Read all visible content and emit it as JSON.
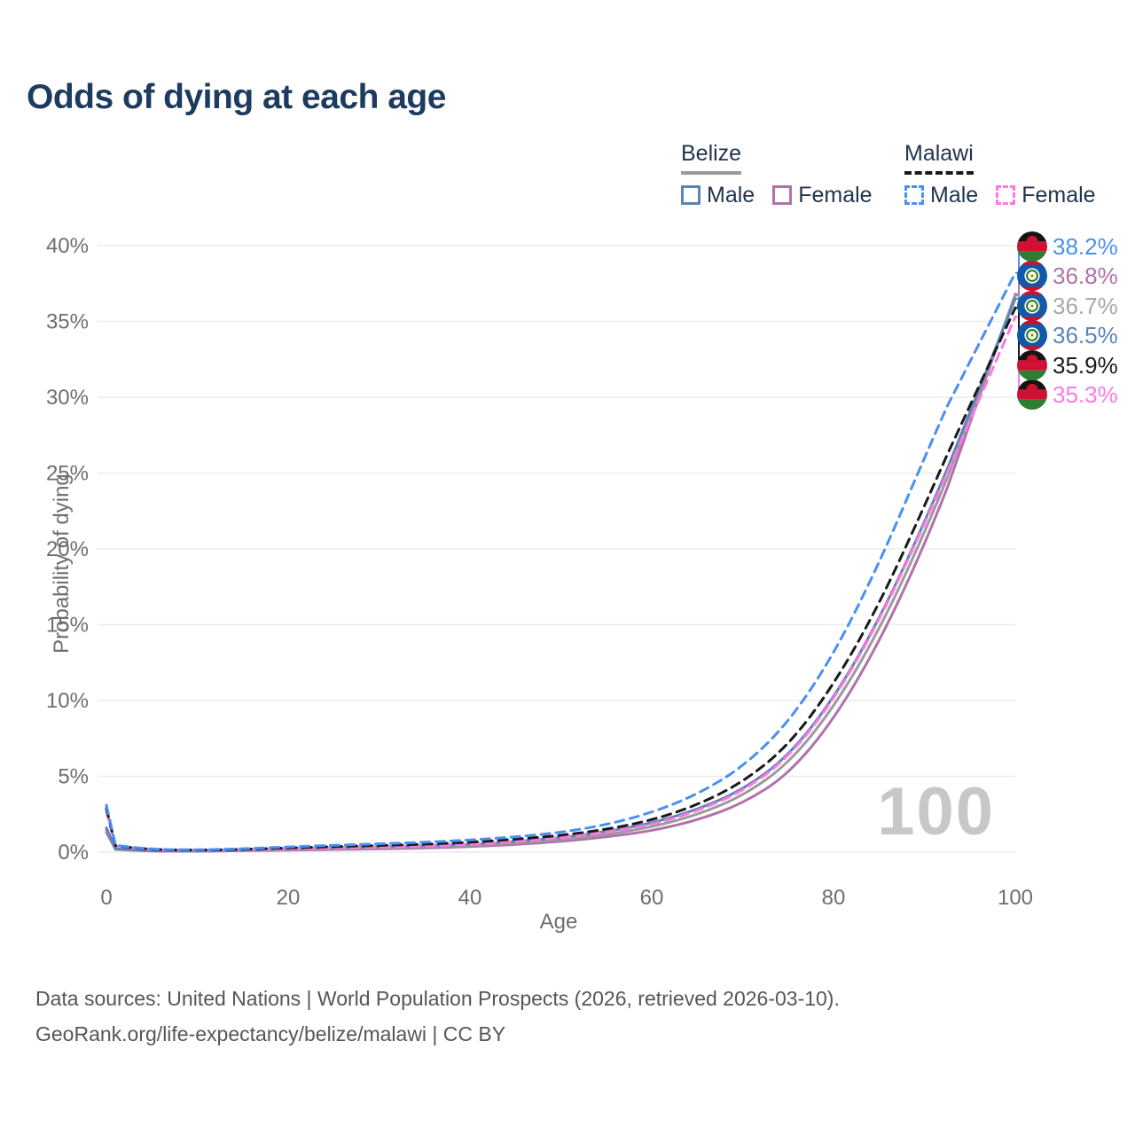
{
  "title": "Odds of dying at each age",
  "watermark": "100",
  "legend": {
    "groups": [
      {
        "name": "Belize",
        "underline_style": "solid",
        "underline_color": "#9a9a9a",
        "items": [
          {
            "label": "Male",
            "color": "#5b84b8",
            "dashed": false
          },
          {
            "label": "Female",
            "color": "#b171ac",
            "dashed": false
          }
        ]
      },
      {
        "name": "Malawi",
        "underline_style": "dashed",
        "underline_color": "#1a1a1a",
        "items": [
          {
            "label": "Male",
            "color": "#4a90f2",
            "dashed": true
          },
          {
            "label": "Female",
            "color": "#ff78e2",
            "dashed": true
          }
        ]
      }
    ]
  },
  "chart_data": {
    "type": "line",
    "title": "Odds of dying at each age",
    "xlabel": "Age",
    "ylabel": "Probability of dying",
    "xlim": [
      0,
      100
    ],
    "ylim": [
      0,
      40
    ],
    "grid": "horizontal",
    "x_ticks": [
      0,
      20,
      40,
      60,
      80,
      100
    ],
    "x_tick_labels": [
      "0",
      "20",
      "40",
      "60",
      "80",
      "100"
    ],
    "y_ticks": [
      0,
      5,
      10,
      15,
      20,
      25,
      30,
      35,
      40
    ],
    "y_tick_labels": [
      "0%",
      "5%",
      "10%",
      "15%",
      "20%",
      "25%",
      "30%",
      "35%",
      "40%"
    ],
    "x": [
      0,
      1,
      5,
      10,
      15,
      20,
      25,
      30,
      35,
      40,
      45,
      50,
      55,
      60,
      65,
      70,
      75,
      80,
      85,
      90,
      95,
      100
    ],
    "series": [
      {
        "name": "Belize Female",
        "id": "belize-female",
        "country": "belize",
        "color": "#b171ac",
        "dashed": false,
        "values": [
          1.3,
          0.18,
          0.06,
          0.06,
          0.09,
          0.13,
          0.17,
          0.21,
          0.27,
          0.36,
          0.5,
          0.7,
          1.0,
          1.4,
          2.1,
          3.2,
          5.1,
          8.7,
          13.8,
          20.2,
          27.8,
          36.8
        ],
        "end_label": {
          "text": "36.8%",
          "color": "#b171ac",
          "flag": "belize",
          "row": 1
        }
      },
      {
        "name": "Belize",
        "id": "belize-total",
        "country": "belize",
        "color": "#9b9b9b",
        "dashed": false,
        "values": [
          1.45,
          0.2,
          0.07,
          0.07,
          0.11,
          0.18,
          0.24,
          0.28,
          0.34,
          0.44,
          0.6,
          0.82,
          1.15,
          1.65,
          2.45,
          3.7,
          5.8,
          9.5,
          14.6,
          21.0,
          28.3,
          36.7
        ],
        "end_label": {
          "text": "36.7%",
          "color": "#a8a8a8",
          "flag": "belize",
          "row": 2
        }
      },
      {
        "name": "Belize Male",
        "id": "belize-male",
        "country": "belize",
        "color": "#5b84b8",
        "dashed": false,
        "values": [
          1.6,
          0.22,
          0.08,
          0.08,
          0.13,
          0.22,
          0.3,
          0.35,
          0.42,
          0.52,
          0.7,
          0.95,
          1.35,
          1.9,
          2.8,
          4.1,
          6.3,
          10.1,
          15.3,
          21.7,
          28.8,
          36.5
        ],
        "end_label": {
          "text": "36.5%",
          "color": "#5b84b8",
          "flag": "belize",
          "row": 3
        }
      },
      {
        "name": "Malawi Female",
        "id": "malawi-female",
        "country": "malawi",
        "color": "#ff78e2",
        "dashed": true,
        "values": [
          2.7,
          0.4,
          0.15,
          0.12,
          0.15,
          0.22,
          0.28,
          0.33,
          0.4,
          0.5,
          0.7,
          0.95,
          1.3,
          1.8,
          2.7,
          4.0,
          6.2,
          10.0,
          15.2,
          21.6,
          28.4,
          35.3
        ],
        "end_label": {
          "text": "35.3%",
          "color": "#ff78e2",
          "flag": "malawi",
          "row": 5
        }
      },
      {
        "name": "Malawi",
        "id": "malawi-total",
        "country": "malawi",
        "color": "#1a1a1a",
        "dashed": true,
        "values": [
          2.9,
          0.42,
          0.16,
          0.13,
          0.18,
          0.28,
          0.36,
          0.44,
          0.52,
          0.65,
          0.85,
          1.1,
          1.5,
          2.1,
          3.1,
          4.6,
          7.0,
          11.0,
          16.3,
          22.8,
          29.6,
          35.9
        ],
        "end_label": {
          "text": "35.9%",
          "color": "#1a1a1a",
          "flag": "malawi",
          "row": 4
        }
      },
      {
        "name": "Malawi Male",
        "id": "malawi-male",
        "country": "malawi",
        "color": "#4a90f2",
        "dashed": true,
        "values": [
          3.1,
          0.45,
          0.18,
          0.15,
          0.22,
          0.35,
          0.45,
          0.55,
          0.65,
          0.8,
          1.0,
          1.3,
          1.8,
          2.6,
          3.8,
          5.6,
          8.5,
          13.0,
          19.0,
          26.0,
          32.8,
          38.2
        ],
        "end_label": {
          "text": "38.2%",
          "color": "#4a90f2",
          "flag": "malawi",
          "row": 0
        }
      }
    ]
  },
  "footer": {
    "line1": "Data sources: United Nations | World Population Prospects (2026, retrieved 2026-03-10).",
    "line2": "GeoRank.org/life-expectancy/belize/malawi | CC BY"
  },
  "flag_colors": {
    "malawi_black": "#141414",
    "malawi_red": "#d21034",
    "malawi_green": "#2e7d32",
    "belize_blue": "#1359a8",
    "belize_red": "#ce1126",
    "belize_ring_green": "#2a7a2a",
    "belize_center": "#efe5ad"
  }
}
